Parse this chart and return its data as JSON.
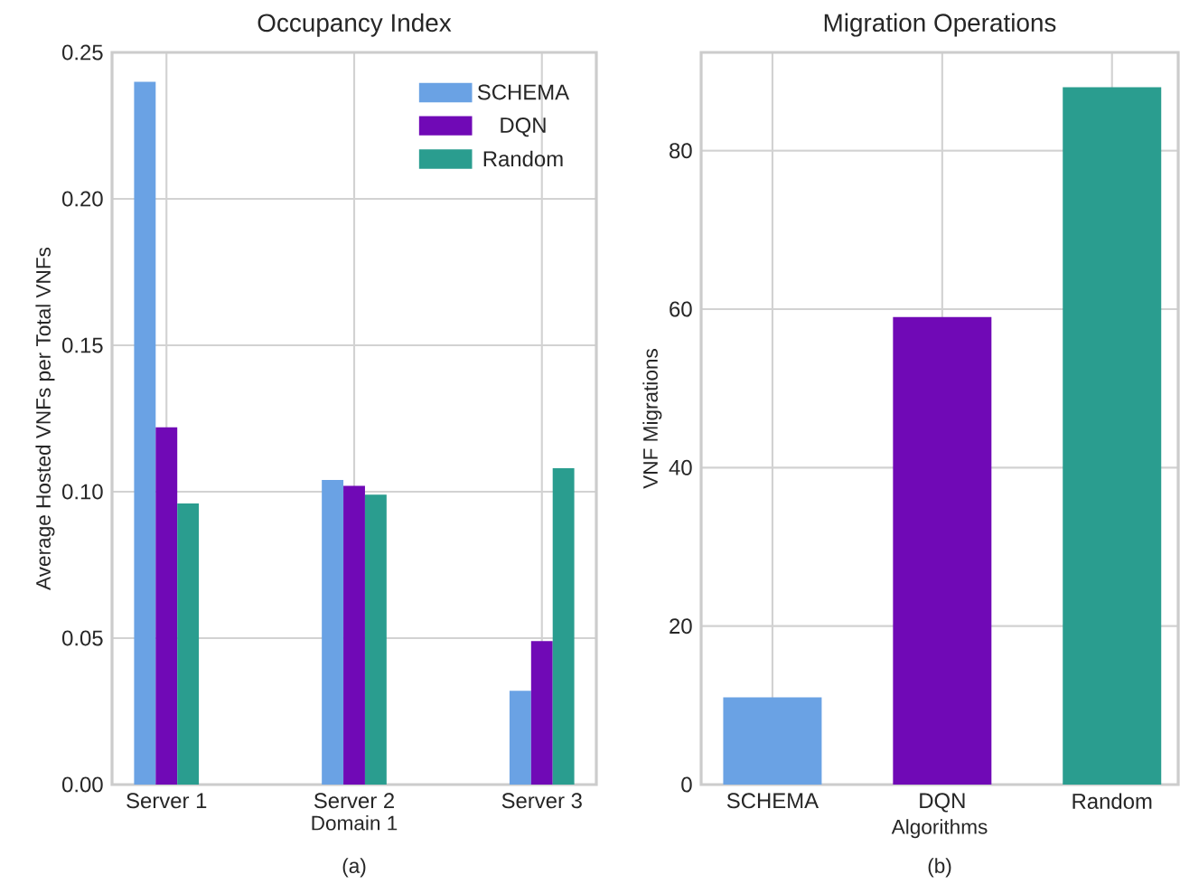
{
  "chart_data": [
    {
      "type": "bar",
      "title": "Occupancy Index",
      "xlabel": "Domain 1",
      "ylabel": "Average Hosted VNFs per Total VNFs",
      "annotations": [
        "(a)"
      ],
      "categories": [
        "Server 1",
        "Server 2",
        "Server 3"
      ],
      "series": [
        {
          "name": "SCHEMA",
          "color": "#6aa2e4",
          "values": [
            0.24,
            0.104,
            0.032
          ]
        },
        {
          "name": "DQN",
          "color": "#7009b6",
          "values": [
            0.122,
            0.102,
            0.049
          ]
        },
        {
          "name": "Random",
          "color": "#2a9d8f",
          "values": [
            0.096,
            0.099,
            0.108
          ]
        }
      ],
      "ylim": [
        0,
        0.25
      ],
      "yticks": [
        {
          "value": 0,
          "label": "0.00"
        },
        {
          "value": 0.05,
          "label": "0.05"
        },
        {
          "value": 0.1,
          "label": "0.10"
        },
        {
          "value": 0.15,
          "label": "0.15"
        },
        {
          "value": 0.2,
          "label": "0.20"
        },
        {
          "value": 0.25,
          "label": "0.25"
        }
      ],
      "grid": true,
      "legend": "top right"
    },
    {
      "type": "bar",
      "title": "Migration Operations",
      "xlabel": "Algorithms",
      "ylabel": "VNF Migrations",
      "annotations": [
        "(b)"
      ],
      "categories": [
        "SCHEMA",
        "DQN",
        "Random"
      ],
      "values": [
        11,
        59,
        88
      ],
      "colors": [
        "#6aa2e4",
        "#7009b6",
        "#2a9d8f"
      ],
      "ylim": [
        0,
        92.4
      ],
      "yticks": [
        0,
        20,
        40,
        60,
        80
      ],
      "grid": true
    }
  ]
}
